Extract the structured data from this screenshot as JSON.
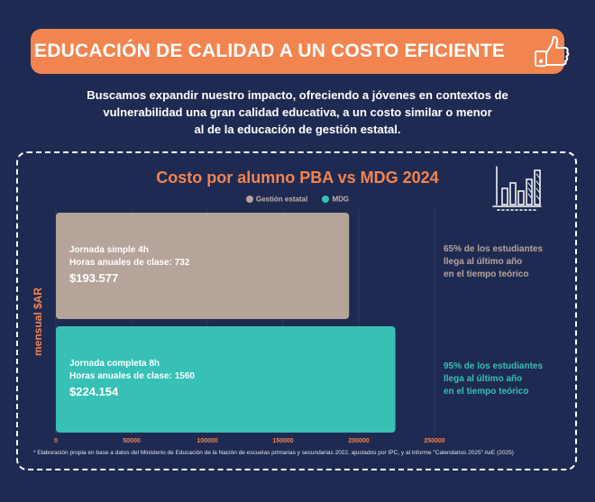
{
  "header": {
    "title": "EDUCACIÓN DE CALIDAD A UN COSTO EFICIENTE",
    "icon": "thumbs-up-icon"
  },
  "intro": {
    "lines": [
      "Buscamos expandir nuestro impacto, ofreciendo a jóvenes en contextos de",
      "vulnerabilidad una gran calidad educativa, a un costo similar o menor",
      "al de la educación de gestión estatal."
    ]
  },
  "decor": {
    "chart_icon": "bar-chart-icon"
  },
  "colors": {
    "background": "#1f2a52",
    "accent": "#f2844f",
    "gestion_estatal": "#b6a49b",
    "mdg": "#37c0b6"
  },
  "chart_data": {
    "type": "bar",
    "orientation": "horizontal",
    "title": "Costo por alumno PBA vs MDG 2024",
    "ylabel": "mensual $AR",
    "xlabel": "",
    "xlim": [
      0,
      250000
    ],
    "xticks": [
      "0",
      "50000",
      "100000",
      "150000",
      "200000",
      "250000"
    ],
    "grid": true,
    "legend_position": "top-center",
    "legend": [
      {
        "name": "Gestión estatal",
        "color": "#b6a49b"
      },
      {
        "name": "MDG",
        "color": "#37c0b6"
      }
    ],
    "bars": [
      {
        "series": "Gestión estatal",
        "value": 193577,
        "label_line1": "Jornada simple 4h",
        "label_line2": "Horas anuales de clase: 732",
        "value_label": "$193.577",
        "note_lines": [
          "65% de los estudiantes",
          "llega al último año",
          "en el tiempo teórico"
        ],
        "color": "#b6a49b",
        "note_color": "#b6a49b"
      },
      {
        "series": "MDG",
        "value": 224154,
        "label_line1": "Jornada completa 8h",
        "label_line2": "Horas anuales de clase: 1560",
        "value_label": "$224.154",
        "note_lines": [
          "95% de los estudiantes",
          "llega al último año",
          "en el tiempo teórico"
        ],
        "color": "#37c0b6",
        "note_color": "#37c0b6"
      }
    ]
  },
  "footnote": "* Elaboración propia en base a datos del Ministerio de Educación de la Nación de escuelas primarias y secundarias 2022, ajustados por IPC, y al informe \"Calendarios 2025\" AxE (2025)"
}
